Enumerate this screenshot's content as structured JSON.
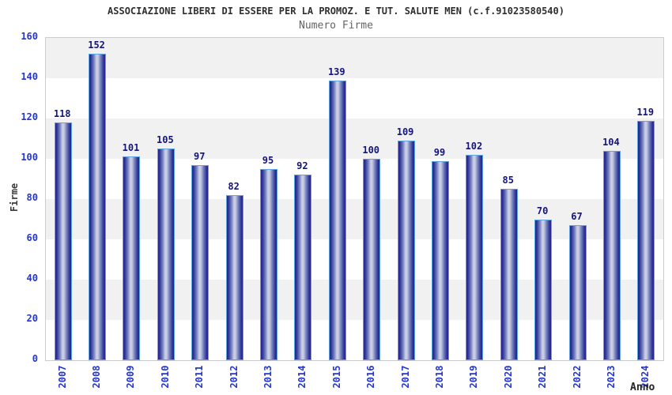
{
  "chart_data": {
    "type": "bar",
    "title": "ASSOCIAZIONE LIBERI DI ESSERE PER LA PROMOZ. E TUT. SALUTE MEN (c.f.91023580540)",
    "subtitle": "Numero Firme",
    "xlabel": "Anno",
    "ylabel": "Firme",
    "categories": [
      "2007",
      "2008",
      "2009",
      "2010",
      "2011",
      "2012",
      "2013",
      "2014",
      "2015",
      "2016",
      "2017",
      "2018",
      "2019",
      "2020",
      "2021",
      "2022",
      "2023",
      "2024"
    ],
    "values": [
      118,
      152,
      101,
      105,
      97,
      82,
      95,
      92,
      139,
      100,
      109,
      99,
      102,
      85,
      70,
      67,
      104,
      119
    ],
    "ylim": [
      0,
      160
    ],
    "yticks": [
      0,
      20,
      40,
      60,
      80,
      100,
      120,
      140,
      160
    ],
    "grid": "alternating horizontal bands every 20 units, gray on 140-160/100-120/60-80/20-40",
    "legend": "none",
    "colors": {
      "bar_edge": "#5fa4e0",
      "bar_dark": "#23238b",
      "bar_light": "#cdd1e8",
      "value_label": "#14147d",
      "tick_label": "#2536c8",
      "band_gray": "#f1f1f1",
      "plot_border": "#cccccc",
      "title": "#2f2f2f",
      "subtitle": "#646464"
    }
  }
}
